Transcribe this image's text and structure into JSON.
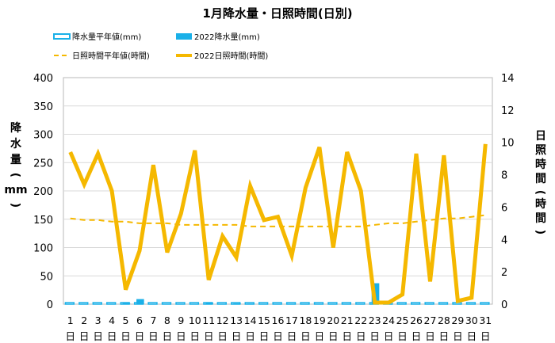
{
  "chart_data": {
    "type": "bar+line",
    "title": "1月降水量・日照時間(日別)",
    "categories": [
      "1",
      "2",
      "3",
      "4",
      "5",
      "6",
      "7",
      "8",
      "9",
      "10",
      "11",
      "12",
      "13",
      "14",
      "15",
      "16",
      "17",
      "18",
      "19",
      "20",
      "21",
      "22",
      "23",
      "24",
      "25",
      "26",
      "27",
      "28",
      "29",
      "30",
      "31"
    ],
    "category_suffix": "日",
    "y_left": {
      "label": "降水量(mm)",
      "ylim": [
        0,
        400
      ],
      "ticks": [
        0,
        50,
        100,
        150,
        200,
        250,
        300,
        350,
        400
      ]
    },
    "y_right": {
      "label": "日照時間(時間)",
      "ylim": [
        0,
        14
      ],
      "ticks": [
        0,
        2,
        4,
        6,
        8,
        10,
        12,
        14
      ]
    },
    "legend": {
      "items": [
        {
          "key": "precip_normal",
          "label": "降水量平年値(mm)"
        },
        {
          "key": "precip_2022",
          "label": "2022降水量(mm)"
        },
        {
          "key": "sun_normal",
          "label": "日照時間平年値(時間)"
        },
        {
          "key": "sun_2022",
          "label": "2022日照時間(時間)"
        }
      ]
    },
    "series": [
      {
        "key": "precip_normal",
        "name": "降水量平年値(mm)",
        "axis": "left",
        "kind": "bar-outline",
        "color": "#1ab0e8",
        "values": [
          1.5,
          1.5,
          1.5,
          1.5,
          1.5,
          1.5,
          1.5,
          1.5,
          1.5,
          1.5,
          1.5,
          1.5,
          1.5,
          1.5,
          1.5,
          1.5,
          1.5,
          1.5,
          1.5,
          1.5,
          1.5,
          1.5,
          1.5,
          1.5,
          1.5,
          1.5,
          1.5,
          1.5,
          1.5,
          1.5,
          1.5
        ]
      },
      {
        "key": "precip_2022",
        "name": "2022降水量(mm)",
        "axis": "left",
        "kind": "bar",
        "color": "#1ab0e8",
        "values": [
          0,
          0,
          0,
          0,
          2,
          9,
          0,
          0,
          0,
          0,
          2.5,
          0,
          1.5,
          1,
          0,
          0,
          0,
          0,
          0,
          0,
          0,
          0,
          37,
          0,
          0,
          0,
          0,
          0,
          0,
          0,
          0
        ]
      },
      {
        "key": "sun_normal",
        "name": "日照時間平年値(時間)",
        "axis": "right",
        "kind": "line-dashed",
        "color": "#f5b800",
        "values": [
          5.3,
          5.2,
          5.2,
          5.1,
          5.1,
          5.0,
          5.0,
          5.0,
          4.9,
          4.9,
          4.9,
          4.9,
          4.9,
          4.8,
          4.8,
          4.8,
          4.8,
          4.8,
          4.8,
          4.8,
          4.8,
          4.8,
          4.9,
          5.0,
          5.0,
          5.1,
          5.2,
          5.3,
          5.3,
          5.4,
          5.5
        ]
      },
      {
        "key": "sun_2022",
        "name": "2022日照時間(時間)",
        "axis": "right",
        "kind": "line",
        "color": "#f5b800",
        "values": [
          9.4,
          7.4,
          9.3,
          7.0,
          0.9,
          3.3,
          8.6,
          3.2,
          5.6,
          9.5,
          1.5,
          4.2,
          2.9,
          7.3,
          5.2,
          5.4,
          3.0,
          7.2,
          9.7,
          3.5,
          9.4,
          7.0,
          0.1,
          0.1,
          0.6,
          9.3,
          1.4,
          9.2,
          0.2,
          0.4,
          9.9
        ]
      }
    ]
  }
}
